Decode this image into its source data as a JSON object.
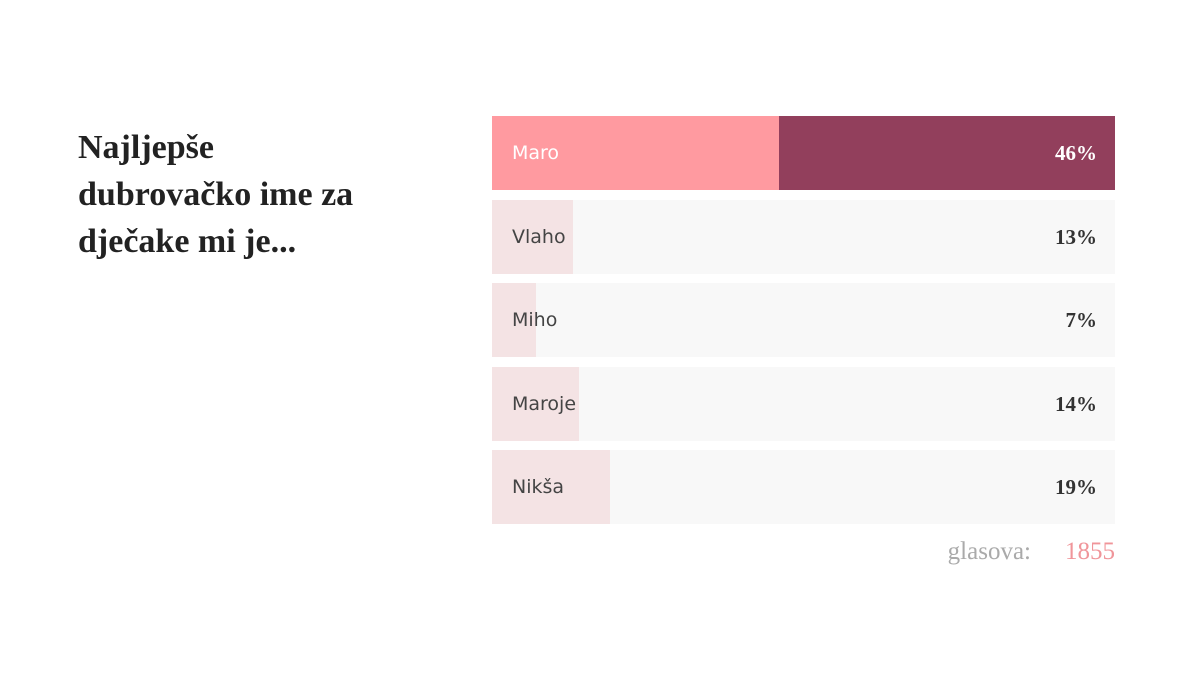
{
  "poll": {
    "question": "Najljepše dubrovačko ime za dječake mi je...",
    "options": [
      {
        "label": "Maro",
        "value": 46,
        "value_label": "46%"
      },
      {
        "label": "Vlaho",
        "value": 13,
        "value_label": "13%"
      },
      {
        "label": "Miho",
        "value": 7,
        "value_label": "7%"
      },
      {
        "label": "Maroje",
        "value": 14,
        "value_label": "14%"
      },
      {
        "label": "Nikša",
        "value": 19,
        "value_label": "19%"
      }
    ],
    "votes_label": "glasova:",
    "votes": 1855
  }
}
